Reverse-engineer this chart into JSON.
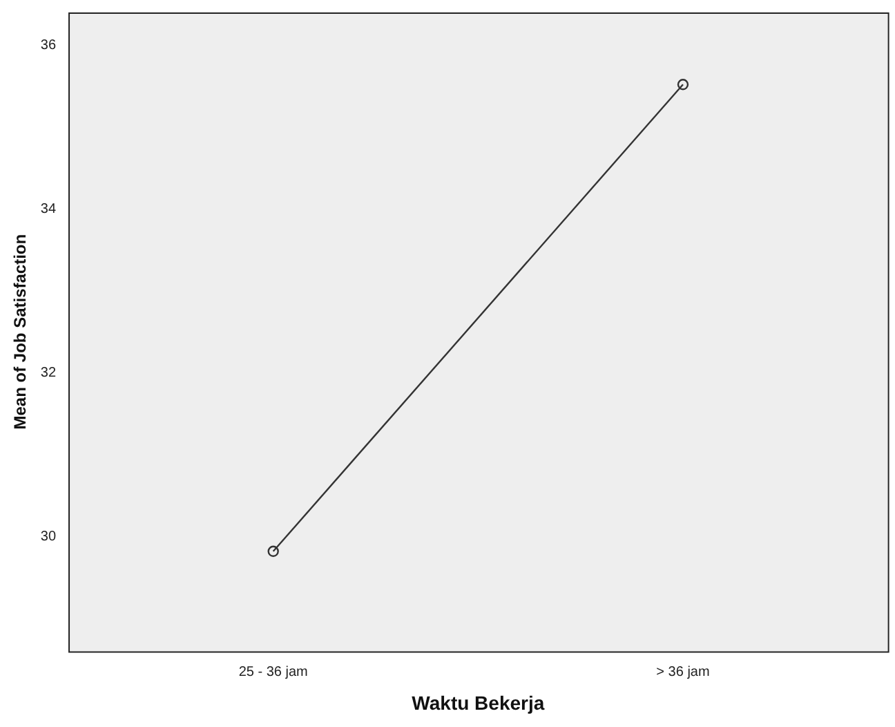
{
  "chart_data": {
    "type": "line",
    "xlabel": "Waktu Bekerja",
    "ylabel": "Mean of Job Satisfaction",
    "categories": [
      "25 - 36 jam",
      "> 36 jam"
    ],
    "series": [
      {
        "color": "#333333",
        "values": [
          29.82,
          35.52
        ]
      }
    ],
    "ylim": [
      28.6,
      36.4
    ],
    "yticks": [
      30,
      32,
      34,
      36
    ],
    "grid": false,
    "legend": false,
    "marker": "circle",
    "line_style": "solid"
  }
}
